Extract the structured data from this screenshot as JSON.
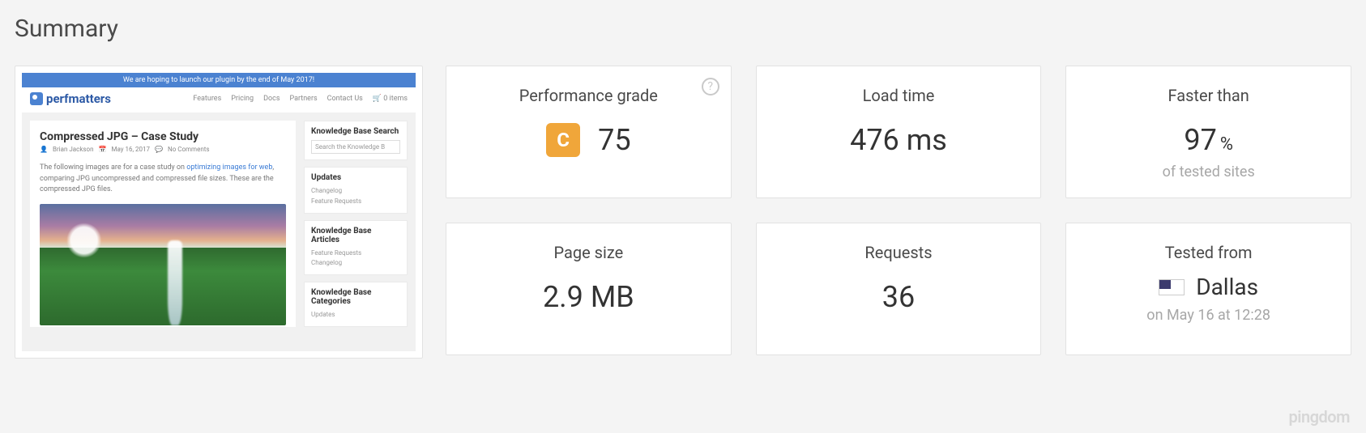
{
  "section_title": "Summary",
  "colors": {
    "page_bg": "#f4f4f4",
    "card_bg": "#ffffff",
    "card_border": "#e2e2e2",
    "text_primary": "#333333",
    "text_label": "#4a4a4a",
    "text_muted": "#a7a7a7",
    "help_icon": "#c9c9c9",
    "grade_badge_bg": "#f0a63a",
    "watermark": "#d7d7d7",
    "thumb_banner_bg": "#4b82d1",
    "thumb_logo_color": "#2d5aa6",
    "thumb_link": "#3a7bd5"
  },
  "thumbnail": {
    "banner_text": "We are hoping to launch our plugin by the end of May 2017!",
    "logo_text": "perfmatters",
    "nav": [
      "Features",
      "Pricing",
      "Docs",
      "Partners",
      "Contact Us",
      "🛒 0 items"
    ],
    "article": {
      "title": "Compressed JPG – Case Study",
      "author": "Brian Jackson",
      "date": "May 16, 2017",
      "comments": "No Comments",
      "desc_prefix": "The following images are for a case study on ",
      "desc_link": "optimizing images for web",
      "desc_suffix": ", comparing JPG uncompressed and compressed file sizes. These are the compressed JPG files."
    },
    "sidebar": [
      {
        "title": "Knowledge Base Search",
        "type": "search",
        "placeholder": "Search the Knowledge B"
      },
      {
        "title": "Updates",
        "type": "links",
        "links": [
          "Changelog",
          "Feature Requests"
        ]
      },
      {
        "title": "Knowledge Base Articles",
        "type": "links",
        "links": [
          "Feature Requests",
          "Changelog"
        ]
      },
      {
        "title": "Knowledge Base Categories",
        "type": "links",
        "links": [
          "Updates"
        ]
      }
    ]
  },
  "cards": {
    "performance_grade": {
      "label": "Performance grade",
      "letter": "C",
      "score": "75",
      "badge_color": "#f0a63a",
      "has_help": true
    },
    "load_time": {
      "label": "Load time",
      "value": "476 ms"
    },
    "faster_than": {
      "label": "Faster than",
      "value": "97",
      "unit": "%",
      "subtext": "of tested sites"
    },
    "page_size": {
      "label": "Page size",
      "value": "2.9 MB"
    },
    "requests": {
      "label": "Requests",
      "value": "36"
    },
    "tested_from": {
      "label": "Tested from",
      "location": "Dallas",
      "flag": "us",
      "subtext": "on May 16 at 12:28"
    }
  },
  "watermark": "pingdom"
}
